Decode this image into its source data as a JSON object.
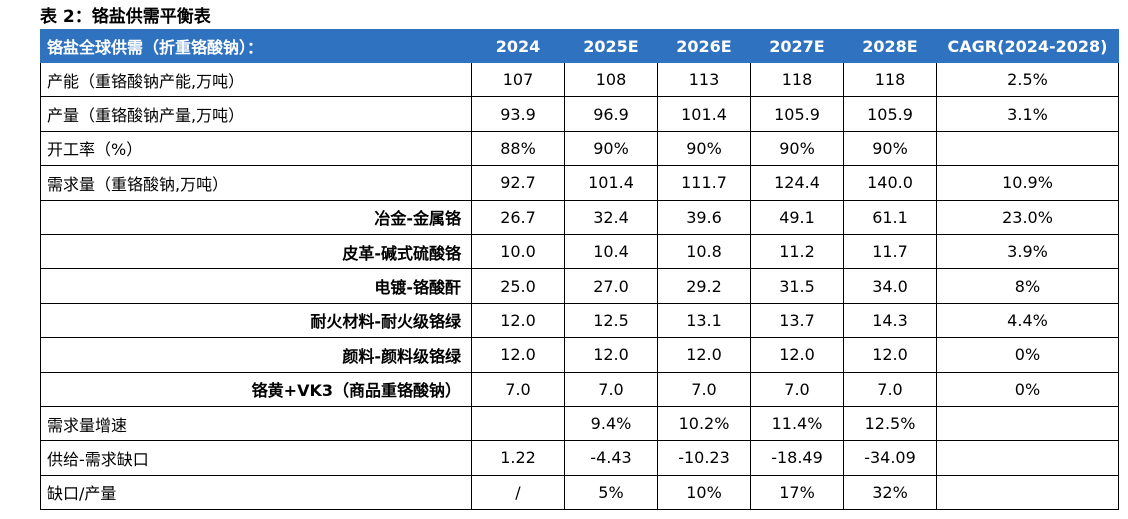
{
  "header": {
    "title": "表 2：铬盐供需平衡表"
  },
  "table": {
    "columns": [
      "铬盐全球供需（折重铬酸钠）：",
      "2024",
      "2025E",
      "2026E",
      "2027E",
      "2028E",
      "CAGR(2024-2028)"
    ],
    "rows": [
      [
        "产能（重铬酸钠产能,万吨）",
        "107",
        "108",
        "113",
        "118",
        "118",
        "2.5%"
      ],
      [
        "产量（重铬酸钠产量,万吨）",
        "93.9",
        "96.9",
        "101.4",
        "105.9",
        "105.9",
        "3.1%"
      ],
      [
        "开工率（%）",
        "88%",
        "90%",
        "90%",
        "90%",
        "90%",
        null
      ],
      [
        "需求量（重铬酸钠,万吨）",
        "92.7",
        "101.4",
        "111.7",
        "124.4",
        "140.0",
        "10.9%"
      ],
      [
        "冶金-金属铬",
        "26.7",
        "32.4",
        "39.6",
        "49.1",
        "61.1",
        "23.0%"
      ],
      [
        "皮革-碱式硫酸铬",
        "10.0",
        "10.4",
        "10.8",
        "11.2",
        "11.7",
        "3.9%"
      ],
      [
        "电镀-铬酸酐",
        "25.0",
        "27.0",
        "29.2",
        "31.5",
        "34.0",
        "8%"
      ],
      [
        "耐火材料-耐火级铬绿",
        "12.0",
        "12.5",
        "13.1",
        "13.7",
        "14.3",
        "4.4%"
      ],
      [
        "颜料-颜料级铬绿",
        "12.0",
        "12.0",
        "12.0",
        "12.0",
        "12.0",
        "0%"
      ],
      [
        "铬黄+VK3（商品重铬酸钠）",
        "7.0",
        "7.0",
        "7.0",
        "7.0",
        "7.0",
        "0%"
      ],
      [
        "需求量增速",
        null,
        "9.4%",
        "10.2%",
        "11.4%",
        "12.5%",
        null
      ],
      [
        "供给-需求缺口",
        "1.22",
        "-4.43",
        "-10.23",
        "-18.49",
        "-34.09",
        null
      ],
      [
        "缺口/产量",
        "/",
        "5%",
        "10%",
        "17%",
        "32%",
        null
      ]
    ]
  }
}
